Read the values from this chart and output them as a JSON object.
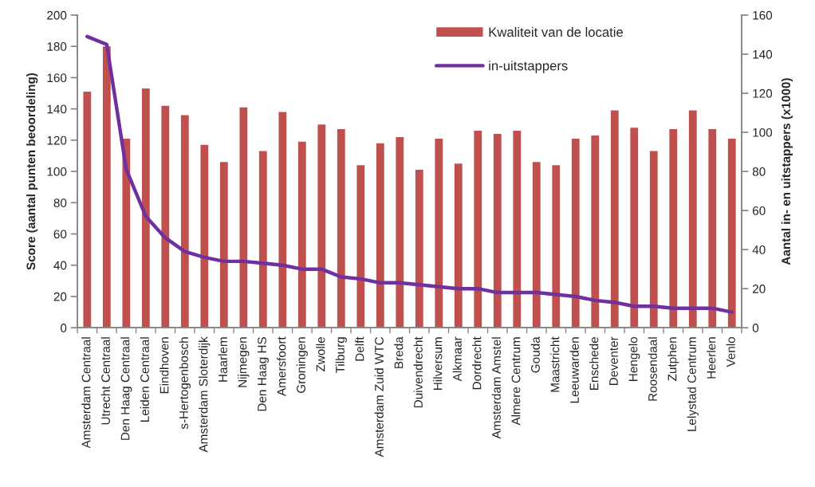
{
  "chart_data": {
    "type": "bar",
    "categories": [
      "Amsterdam Centraal",
      "Utrecht Centraal",
      "Den Haag Centraal",
      "Leiden Centraal",
      "Eindhoven",
      "s-Hertogenbosch",
      "Amsterdam Sloterdijk",
      "Haarlem",
      "Nijmegen",
      "Den Haag HS",
      "Amersfoort",
      "Groningen",
      "Zwolle",
      "Tilburg",
      "Delft",
      "Amsterdam Zuid WTC",
      "Breda",
      "Duivendrecht",
      "Hilversum",
      "Alkmaar",
      "Dordrecht",
      "Amsterdam Amstel",
      "Almere Centrum",
      "Gouda",
      "Maastricht",
      "Leeuwarden",
      "Enschede",
      "Deventer",
      "Hengelo",
      "Roosendaal",
      "Zutphen",
      "Lelystad Centrum",
      "Heerlen",
      "Venlo"
    ],
    "series": [
      {
        "name": "Kwaliteit van de locatie",
        "color": "#c0504d",
        "values": [
          151,
          180,
          121,
          153,
          142,
          136,
          117,
          106,
          141,
          113,
          138,
          119,
          130,
          127,
          104,
          118,
          122,
          101,
          121,
          105,
          126,
          124,
          126,
          106,
          104,
          121,
          123,
          139,
          128,
          113,
          127,
          139,
          127,
          121
        ]
      },
      {
        "name": "in-uitstappers",
        "type": "line",
        "axis": "y2",
        "color": "#7030a0",
        "values": [
          149,
          145,
          81,
          57,
          46,
          39,
          36,
          34,
          34,
          33,
          32,
          30,
          30,
          26,
          25,
          23,
          23,
          22,
          21,
          20,
          20,
          18,
          18,
          18,
          17,
          16,
          14,
          13,
          11,
          11,
          10,
          10,
          10,
          8
        ]
      }
    ],
    "ylabel": "Score (aantal punten beoordeling)",
    "y2label": "Aantal in- en uitstappers (x1000)",
    "ylim": [
      0,
      200
    ],
    "yticks": [
      0,
      20,
      40,
      60,
      80,
      100,
      120,
      140,
      160,
      180,
      200
    ],
    "y2lim": [
      0,
      160
    ],
    "y2ticks": [
      0,
      20,
      40,
      60,
      80,
      100,
      120,
      140,
      160
    ],
    "legend": "top right"
  }
}
